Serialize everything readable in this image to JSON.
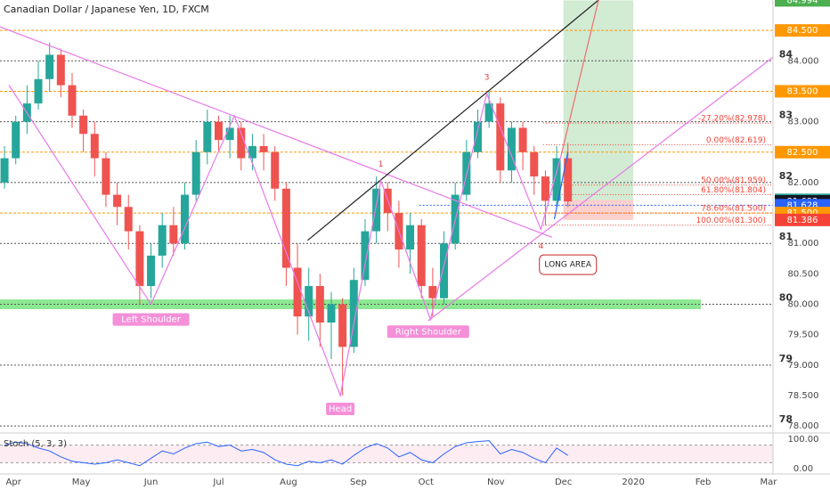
{
  "chart_data": {
    "type": "candlestick",
    "title": "Canadian Dollar / Japanese Yen, 1D, FXCM",
    "x": [
      -4,
      1,
      6,
      11,
      16,
      21,
      26,
      31,
      36,
      41,
      46,
      51,
      56,
      61,
      66,
      71,
      76,
      81,
      86,
      91,
      96,
      101,
      106,
      111,
      116,
      121,
      126,
      131,
      136,
      141,
      146,
      151,
      156,
      161,
      166,
      171,
      176,
      181,
      186,
      191,
      196,
      201,
      206,
      211,
      216,
      221,
      226,
      231,
      236,
      241,
      246
    ],
    "open": [
      82.0,
      82.4,
      83.0,
      83.3,
      83.7,
      84.1,
      83.6,
      83.1,
      82.8,
      82.4,
      81.8,
      81.6,
      81.2,
      80.3,
      80.8,
      81.3,
      81.0,
      81.8,
      82.5,
      83.0,
      82.7,
      82.9,
      82.4,
      82.6,
      82.5,
      81.9,
      80.6,
      79.8,
      80.3,
      79.7,
      80.0,
      79.3,
      80.4,
      81.2,
      81.9,
      81.5,
      80.9,
      81.3,
      80.3,
      80.1,
      81.0,
      81.8,
      82.5,
      83.0,
      83.3,
      82.2,
      82.9,
      82.5,
      82.1,
      81.7,
      82.4
    ],
    "high": [
      82.6,
      83.1,
      83.6,
      84.0,
      84.3,
      84.2,
      83.8,
      83.2,
      83.0,
      82.5,
      82.0,
      81.8,
      81.3,
      81.0,
      81.5,
      81.6,
      82.0,
      82.7,
      83.2,
      83.1,
      83.1,
      83.0,
      82.8,
      82.8,
      82.6,
      82.0,
      81.0,
      80.6,
      80.5,
      80.2,
      80.1,
      80.6,
      81.4,
      82.1,
      82.0,
      81.7,
      81.5,
      81.4,
      80.6,
      81.2,
      82.0,
      82.7,
      83.2,
      83.5,
      83.4,
      83.0,
      83.0,
      82.6,
      82.2,
      82.6,
      82.65
    ],
    "low": [
      81.9,
      82.3,
      82.8,
      83.2,
      83.5,
      83.4,
      82.9,
      82.5,
      82.1,
      81.6,
      81.3,
      80.9,
      80.0,
      80.1,
      80.6,
      80.8,
      80.9,
      81.7,
      82.3,
      82.5,
      82.4,
      82.2,
      82.2,
      82.2,
      81.7,
      80.3,
      79.5,
      79.4,
      79.3,
      79.1,
      78.5,
      79.2,
      80.3,
      81.0,
      81.2,
      80.6,
      80.5,
      80.1,
      79.8,
      80.0,
      80.9,
      81.7,
      82.4,
      82.9,
      82.0,
      82.0,
      82.2,
      81.8,
      81.3,
      81.6,
      81.6
    ],
    "close": [
      82.4,
      83.0,
      83.3,
      83.7,
      84.1,
      83.6,
      83.1,
      82.8,
      82.4,
      81.8,
      81.6,
      81.2,
      80.3,
      80.8,
      81.3,
      81.0,
      81.8,
      82.5,
      83.0,
      82.7,
      82.9,
      82.4,
      82.6,
      82.5,
      81.9,
      80.6,
      79.8,
      80.3,
      79.7,
      80.0,
      79.3,
      80.4,
      81.2,
      81.9,
      81.5,
      80.9,
      81.3,
      80.3,
      80.1,
      81.0,
      81.8,
      82.5,
      83.0,
      83.3,
      82.2,
      82.9,
      82.5,
      82.1,
      81.7,
      82.4,
      81.69
    ],
    "up_color": "#26a69a",
    "down_color": "#ef5350",
    "xlim": [
      -6,
      337
    ],
    "xticks": [
      {
        "value": 0,
        "label": "Apr"
      },
      {
        "value": 30,
        "label": "May"
      },
      {
        "value": 61,
        "label": "Jun"
      },
      {
        "value": 91,
        "label": "Jul"
      },
      {
        "value": 122,
        "label": "Aug"
      },
      {
        "value": 153,
        "label": "Sep"
      },
      {
        "value": 183,
        "label": "Oct"
      },
      {
        "value": 214,
        "label": "Nov"
      },
      {
        "value": 244,
        "label": "Dec"
      },
      {
        "value": 275,
        "label": "2020"
      },
      {
        "value": 306,
        "label": "Feb"
      },
      {
        "value": 335,
        "label": "Mar"
      }
    ],
    "ylim": [
      77.9,
      85.0
    ],
    "yticks": [
      {
        "value": 78,
        "label": "78.000"
      },
      {
        "value": 78.5,
        "label": "78.500"
      },
      {
        "value": 79,
        "label": "79.000"
      },
      {
        "value": 79.5,
        "label": "79.500"
      },
      {
        "value": 80,
        "label": "80.000"
      },
      {
        "value": 80.5,
        "label": "80.500"
      },
      {
        "value": 81,
        "label": "81.000"
      },
      {
        "value": 82,
        "label": "82.000"
      },
      {
        "value": 83,
        "label": "83.000"
      },
      {
        "value": 84,
        "label": "84.000"
      }
    ],
    "levels": [
      84,
      83,
      82,
      81,
      80,
      79,
      78
    ],
    "level_color": "#555555",
    "orange_levels": [
      84.5,
      83.5,
      82.5,
      81.5
    ],
    "orange_color": "#ff9800",
    "price_tags": [
      {
        "value": 84.994,
        "label": "84.994",
        "color": "#4caf50"
      },
      {
        "value": 84.5,
        "label": "84.500",
        "color": "#ff9800"
      },
      {
        "value": 83.5,
        "label": "83.500",
        "color": "#ff9800"
      },
      {
        "value": 82.5,
        "label": "82.500",
        "color": "#ff9800"
      },
      {
        "value": 81.716,
        "label": "81.716",
        "color": "#26a69a"
      },
      {
        "value": 81.692,
        "label": "81.692",
        "color": "#131722"
      },
      {
        "value": 81.628,
        "label": "81.628",
        "color": "#2962ff"
      },
      {
        "value": 81.5,
        "label": "81.500",
        "color": "#ff9800"
      },
      {
        "value": 81.386,
        "label": "81.386",
        "color": "#f44336"
      }
    ],
    "fib": [
      {
        "value": 82.978,
        "label": "-27.20%(82.978)"
      },
      {
        "value": 82.619,
        "label": "0.00%(82.619)"
      },
      {
        "value": 81.959,
        "label": "50.00%(81.959)"
      },
      {
        "value": 81.804,
        "label": "61.80%(81.804)"
      },
      {
        "value": 81.5,
        "label": "78.60%(81.500)"
      },
      {
        "value": 81.3,
        "label": "100.00%(81.300)"
      }
    ],
    "fib_color": "#f44336",
    "fib_start": 235,
    "zone": {
      "x": [
        -6,
        305
      ],
      "y": [
        79.92,
        80.08
      ],
      "color": "#66e06c"
    },
    "position": {
      "x": [
        244,
        275
      ],
      "entry": 81.716,
      "target": 84.994,
      "stop": 81.386
    },
    "blue_level": {
      "value": 81.628,
      "x": [
        180,
        337
      ]
    },
    "lines": [
      {
        "color": "#e879e8",
        "points": [
          [
            -6,
            84.56
          ],
          [
            239,
            81.1
          ]
        ]
      },
      {
        "color": "#e879e8",
        "points": [
          [
            184,
            79.73
          ],
          [
            337,
            84.06
          ]
        ]
      },
      {
        "color": "#222222",
        "points": [
          [
            130.5,
            81.05
          ],
          [
            259.6,
            85.0
          ]
        ]
      },
      {
        "color": "#e879e8",
        "points": [
          [
            -2,
            83.6
          ],
          [
            61,
            80.0
          ],
          [
            98,
            83.1
          ],
          [
            145,
            78.5
          ],
          [
            163,
            82.03
          ],
          [
            185,
            79.75
          ],
          [
            210,
            83.46
          ],
          [
            234,
            81.23
          ],
          [
            243,
            82.45
          ]
        ]
      },
      {
        "color": "#f06e6e",
        "points": [
          [
            243,
            82.45
          ],
          [
            259.6,
            85.0
          ]
        ]
      },
      {
        "color": "#2962ff",
        "points": [
          [
            240,
            81.4
          ],
          [
            246,
            82.5
          ]
        ]
      }
    ],
    "annotations": [
      {
        "text": "Left Shoulder",
        "x": 61,
        "y": 79.75,
        "style": "badge"
      },
      {
        "text": "Head",
        "x": 145,
        "y": 78.28,
        "style": "badge"
      },
      {
        "text": "Right Shoulder",
        "x": 184,
        "y": 79.55,
        "style": "badge"
      },
      {
        "text": "1",
        "x": 163,
        "y": 82.3,
        "style": "number"
      },
      {
        "text": "3",
        "x": 210,
        "y": 83.73,
        "style": "number"
      },
      {
        "text": "4",
        "x": 234,
        "y": 80.95,
        "style": "number"
      },
      {
        "text": "LONG AREA",
        "x": 246,
        "y": 80.65,
        "style": "callout"
      }
    ],
    "stoch": {
      "title": "Stoch (5, 3, 3)",
      "color": "#2962ff",
      "band": [
        20,
        80
      ],
      "values": [
        80,
        90,
        85,
        70,
        60,
        40,
        25,
        20,
        15,
        20,
        30,
        20,
        10,
        35,
        60,
        50,
        70,
        85,
        90,
        75,
        80,
        60,
        65,
        55,
        30,
        15,
        10,
        25,
        20,
        30,
        15,
        45,
        70,
        85,
        70,
        40,
        55,
        30,
        20,
        50,
        75,
        88,
        92,
        95,
        50,
        65,
        55,
        35,
        20,
        70,
        45
      ],
      "ylim": [
        0,
        100
      ],
      "yticks": [
        {
          "value": 100,
          "label": "100.00"
        },
        {
          "value": 0,
          "label": "0.00"
        }
      ]
    }
  }
}
